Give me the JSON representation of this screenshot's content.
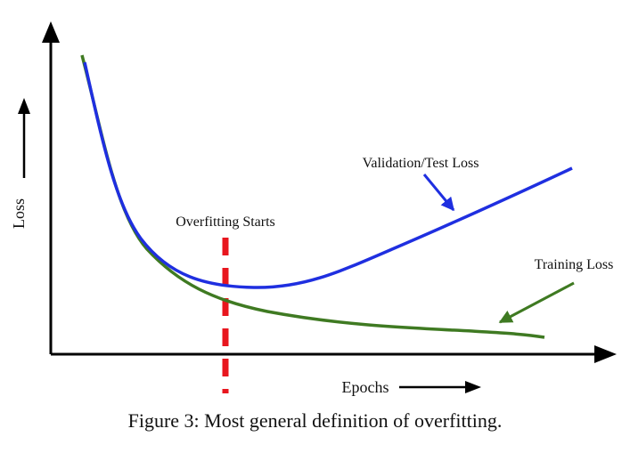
{
  "chart_data": {
    "type": "line",
    "xlabel": "Epochs",
    "ylabel": "Loss",
    "series": [
      {
        "name": "Validation/Test Loss",
        "color": "#1f2fe0"
      },
      {
        "name": "Training Loss",
        "color": "#3f7a22"
      }
    ],
    "annotations": [
      "Overfitting Starts"
    ],
    "marker_color": "#e8161e",
    "grid": false
  },
  "caption": "Figure 3: Most general definition of overfitting."
}
